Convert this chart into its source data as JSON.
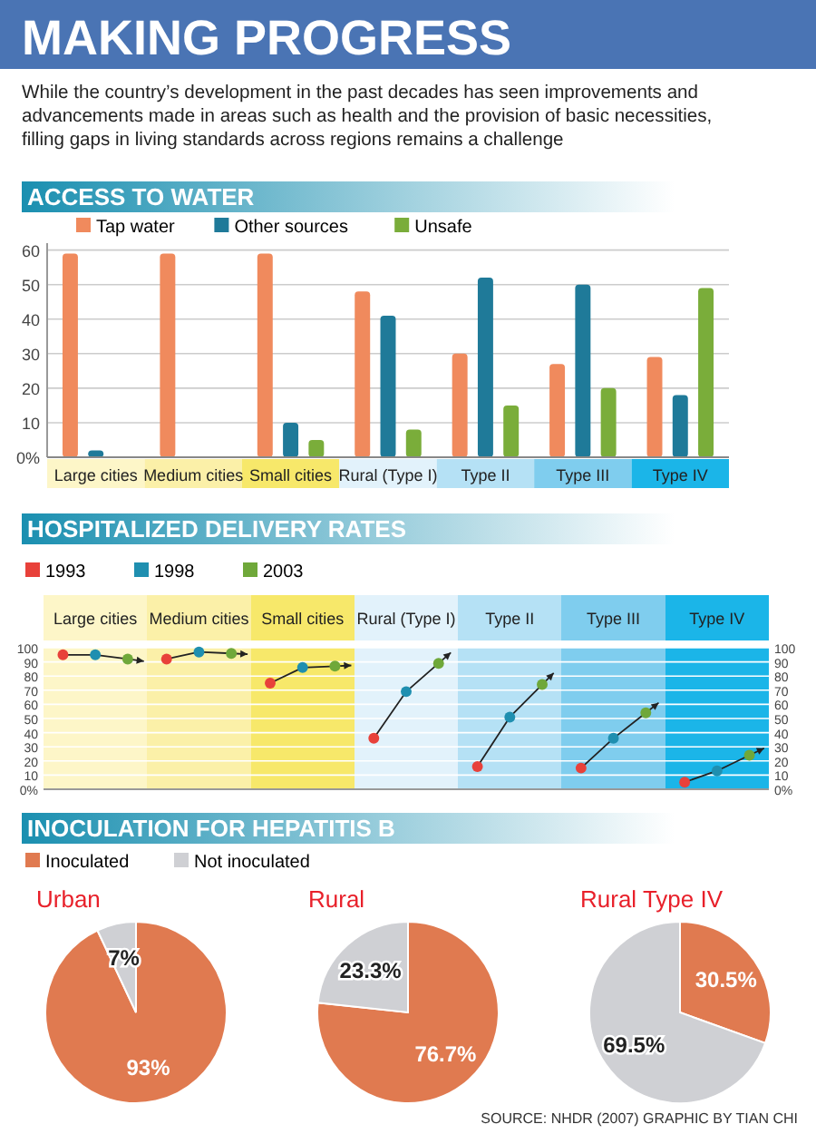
{
  "chart_data": [
    {
      "type": "other",
      "title": "MAKING PROGRESS",
      "subtitle": "While the country’s development in the past decades has seen improvements and advancements made in areas such as health and the provision of basic necessities, filling gaps in living standards across regions remains a challenge",
      "annotations": [
        "SOURCE: NHDR (2007)",
        "GRAPHIC BY TIAN CHI"
      ]
    },
    {
      "type": "bar",
      "title": "ACCESS TO WATER",
      "categories": [
        "Large cities",
        "Medium cities",
        "Small cities",
        "Rural (Type I)",
        "Type II",
        "Type III",
        "Type IV"
      ],
      "series": [
        {
          "name": "Tap water",
          "color": "#f08a5d",
          "values": [
            59,
            59,
            59,
            48,
            30,
            27,
            29
          ]
        },
        {
          "name": "Other sources",
          "color": "#1f7a99",
          "values": [
            2,
            null,
            10,
            41,
            52,
            50,
            18
          ]
        },
        {
          "name": "Unsafe",
          "color": "#7aad3a",
          "values": [
            null,
            null,
            5,
            8,
            15,
            20,
            49
          ]
        }
      ],
      "ylim": [
        0,
        62
      ],
      "yticks": [
        {
          "value": 0,
          "label": "0%"
        },
        10,
        20,
        30,
        40,
        50,
        60
      ],
      "grid": "y",
      "legend": "top left"
    },
    {
      "type": "scatter",
      "title": "HOSPITALIZED DELIVERY RATES",
      "categories": [
        "Large cities",
        "Medium cities",
        "Small cities",
        "Rural (Type I)",
        "Type II",
        "Type III",
        "Type IV"
      ],
      "series": [
        {
          "name": "1993",
          "color": "#e8413a",
          "values": [
            95,
            92,
            75,
            36,
            16,
            15,
            5
          ]
        },
        {
          "name": "1998",
          "color": "#1f8fb0",
          "values": [
            95,
            97,
            86,
            69,
            51,
            36,
            13
          ]
        },
        {
          "name": "2003",
          "color": "#6fa83a",
          "values": [
            92,
            96,
            87,
            89,
            74,
            54,
            24
          ]
        }
      ],
      "marker": "circle",
      "ylim": [
        0,
        100
      ],
      "yticks": [
        {
          "value": 0,
          "label": "0%"
        },
        10,
        20,
        30,
        40,
        50,
        60,
        70,
        80,
        90,
        100
      ],
      "y2lim": [
        0,
        100
      ],
      "y2ticks": [
        {
          "value": 0,
          "label": "0%"
        },
        10,
        20,
        30,
        40,
        50,
        60,
        70,
        80,
        90,
        100
      ],
      "grid": "y",
      "legend": "top left"
    },
    {
      "type": "pie",
      "title": "INOCULATION FOR HEPATITIS B",
      "subtitle": "Urban",
      "categories": [
        "Inoculated",
        "Not inoculated"
      ],
      "values": [
        93,
        7
      ],
      "colors": [
        "#e07a50",
        "#cfd0d4"
      ],
      "value_labels": [
        "93%",
        "7%"
      ],
      "legend": "top"
    },
    {
      "type": "pie",
      "subtitle": "Rural",
      "categories": [
        null,
        null
      ],
      "values": [
        76.7,
        23.3
      ],
      "colors": [
        "#e07a50",
        "#cfd0d4"
      ],
      "value_labels": [
        "76.7%",
        "23.3%"
      ]
    },
    {
      "type": "pie",
      "subtitle": "Rural Type IV",
      "categories": [
        null,
        null
      ],
      "values": [
        30.5,
        69.5
      ],
      "colors": [
        "#e07a50",
        "#cfd0d4"
      ],
      "value_labels": [
        "30.5%",
        "69.5%"
      ]
    }
  ]
}
